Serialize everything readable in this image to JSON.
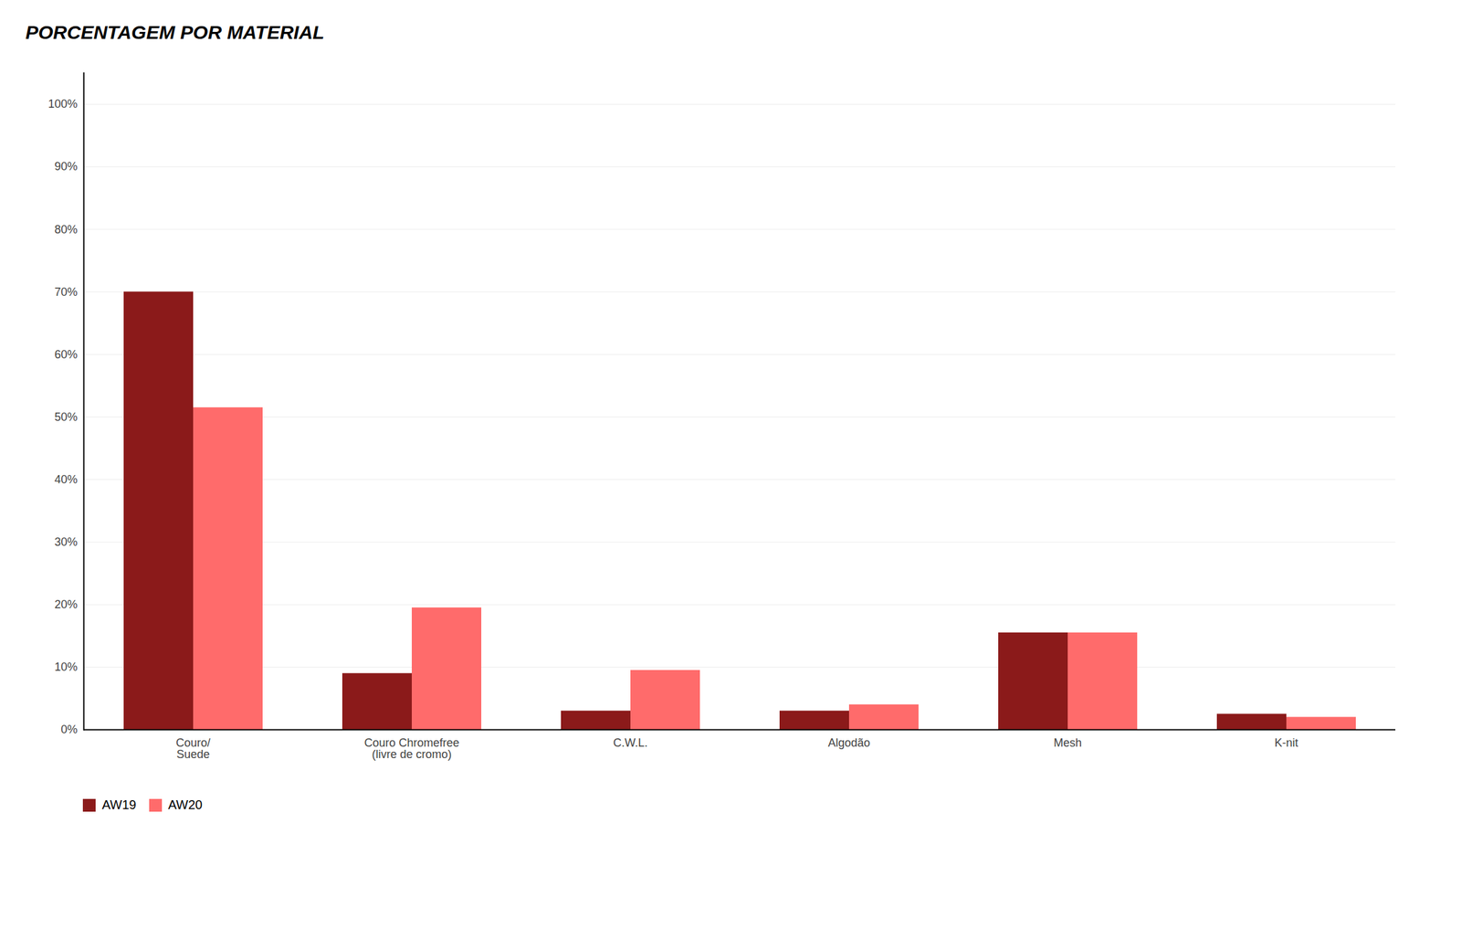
{
  "chart_data": {
    "type": "bar",
    "title": "PORCENTAGEM POR MATERIAL",
    "categories": [
      "Couro/\nSuede",
      "Couro Chromefree\n(livre de cromo)",
      "C.W.L.",
      "Algodão",
      "Mesh",
      "K-nit"
    ],
    "series": [
      {
        "name": "AW19",
        "color": "#8B1A1A",
        "values": [
          0.7,
          0.09,
          0.03,
          0.03,
          0.155,
          0.025
        ]
      },
      {
        "name": "AW20",
        "color": "#FF6B6B",
        "values": [
          0.515,
          0.195,
          0.095,
          0.04,
          0.155,
          0.02
        ]
      }
    ],
    "ylim": [
      0,
      1.05
    ],
    "yticks": [
      {
        "value": 0.0,
        "label": "0%"
      },
      {
        "value": 0.1,
        "label": "10%"
      },
      {
        "value": 0.2,
        "label": "20%"
      },
      {
        "value": 0.3,
        "label": "30%"
      },
      {
        "value": 0.4,
        "label": "40%"
      },
      {
        "value": 0.5,
        "label": "50%"
      },
      {
        "value": 0.6,
        "label": "60%"
      },
      {
        "value": 0.7,
        "label": "70%"
      },
      {
        "value": 0.8,
        "label": "80%"
      },
      {
        "value": 0.9,
        "label": "90%"
      },
      {
        "value": 1.0,
        "label": "100%"
      }
    ],
    "grid": true,
    "legend": "bottom"
  }
}
